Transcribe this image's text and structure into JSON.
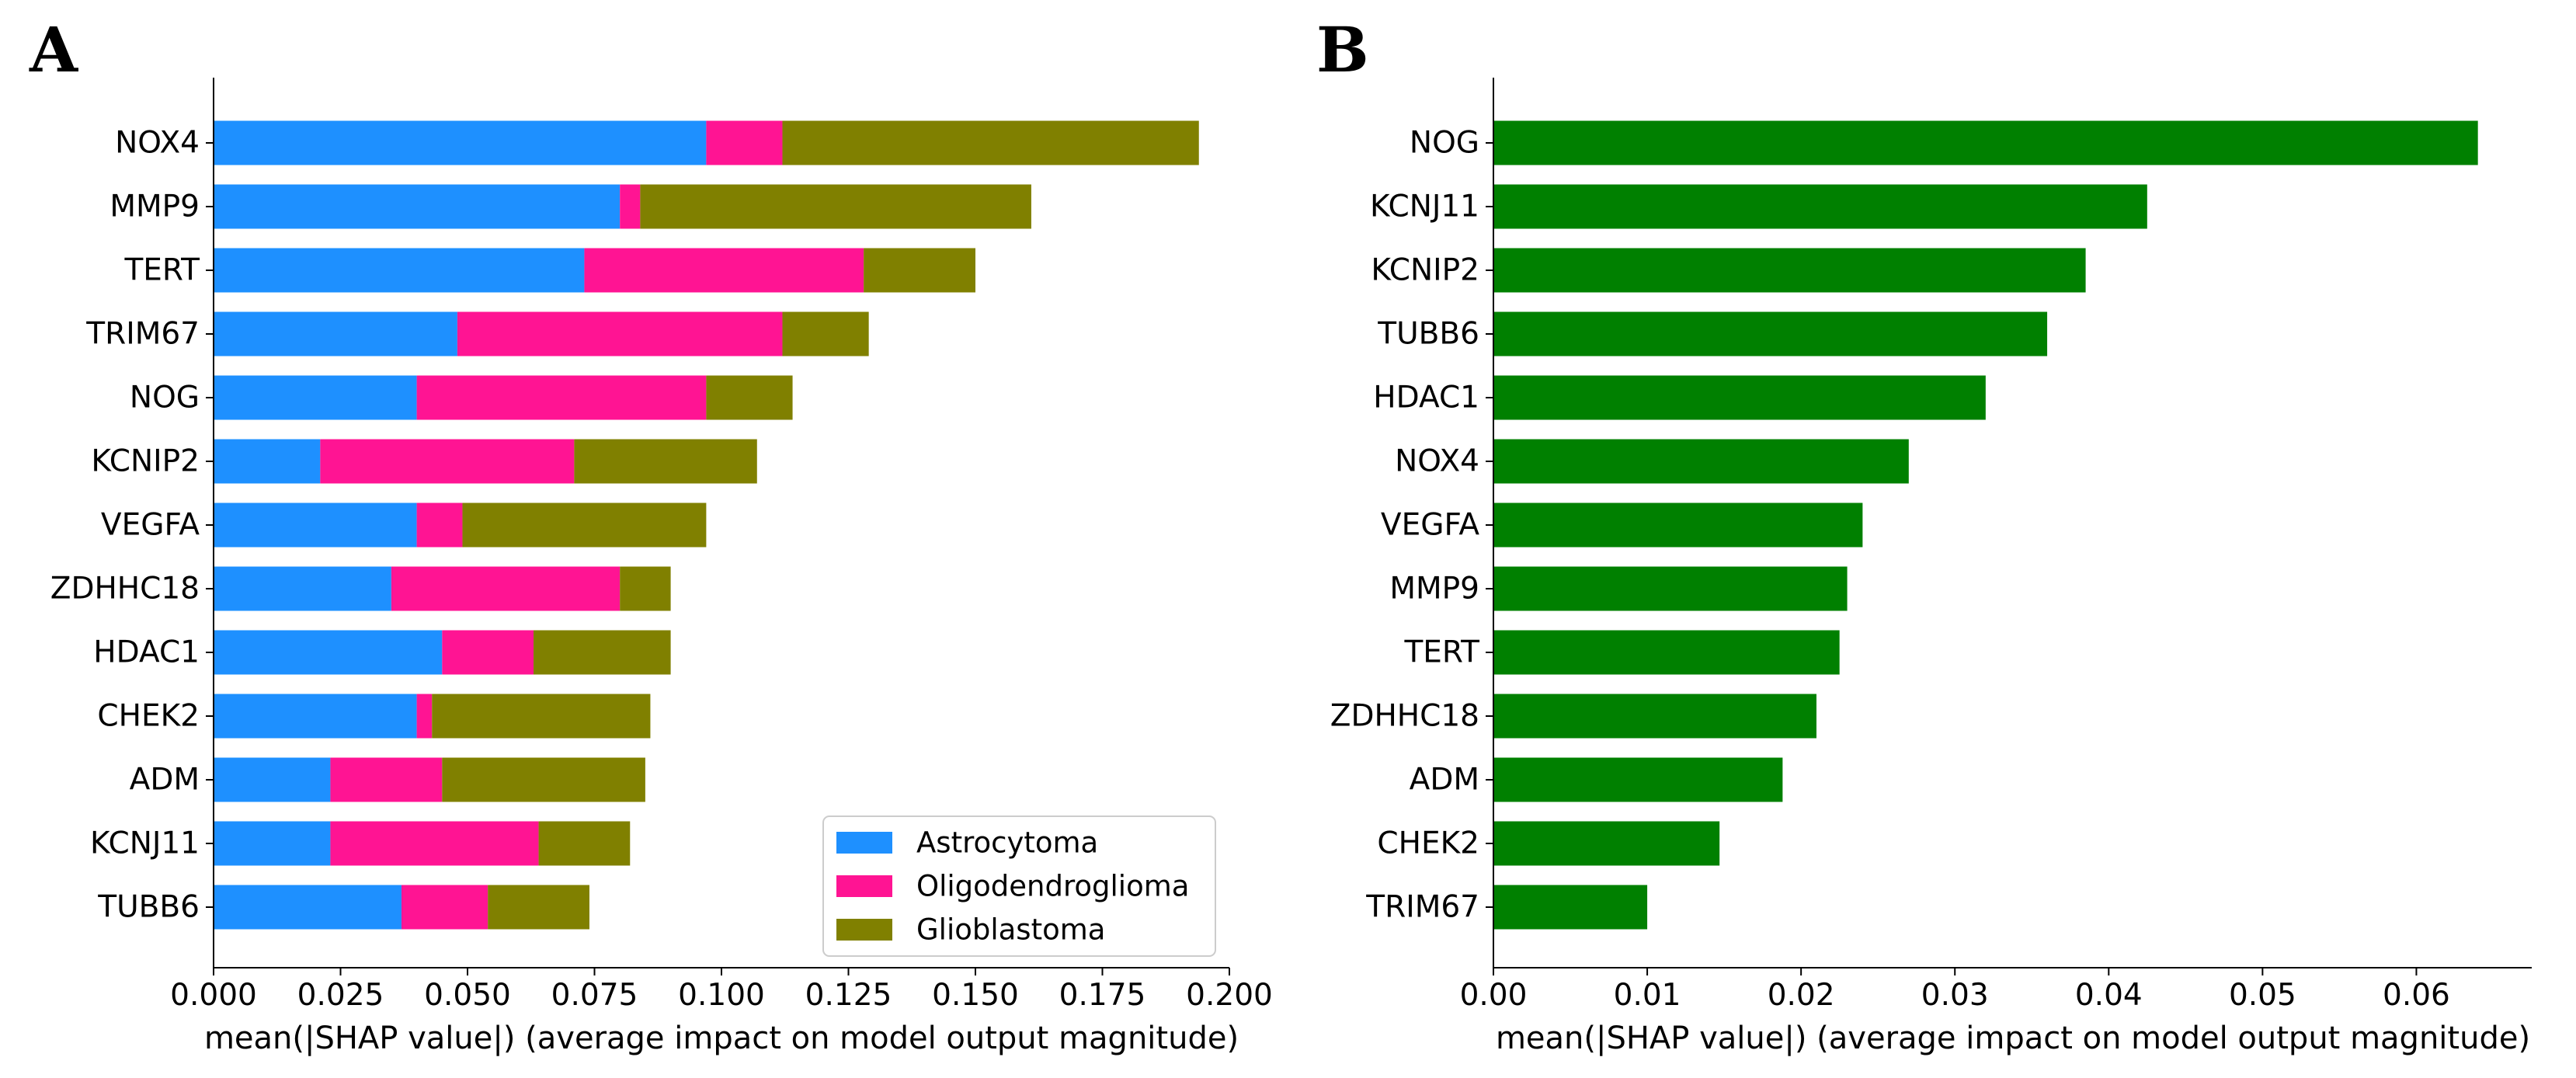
{
  "chart_data": [
    {
      "panel": "A",
      "type": "bar",
      "orientation": "horizontal",
      "stacked": true,
      "title": "",
      "xlabel": "mean(|SHAP value|) (average impact on model output magnitude)",
      "ylabel": "",
      "xlim": [
        0,
        0.2
      ],
      "xticks": [
        "0.000",
        "0.025",
        "0.050",
        "0.075",
        "0.100",
        "0.125",
        "0.150",
        "0.175",
        "0.200"
      ],
      "grid": false,
      "legend_position": "lower-right",
      "categories": [
        "NOX4",
        "MMP9",
        "TERT",
        "TRIM67",
        "NOG",
        "KCNIP2",
        "VEGFA",
        "ZDHHC18",
        "HDAC1",
        "CHEK2",
        "ADM",
        "KCNJ11",
        "TUBB6"
      ],
      "series": [
        {
          "name": "Astrocytoma",
          "color": "#1e90ff",
          "values": [
            0.097,
            0.08,
            0.073,
            0.048,
            0.04,
            0.021,
            0.04,
            0.035,
            0.045,
            0.04,
            0.023,
            0.023,
            0.037
          ]
        },
        {
          "name": "Oligodendroglioma",
          "color": "#ff1493",
          "values": [
            0.015,
            0.004,
            0.055,
            0.064,
            0.057,
            0.05,
            0.009,
            0.045,
            0.018,
            0.003,
            0.022,
            0.041,
            0.017
          ]
        },
        {
          "name": "Glioblastoma",
          "color": "#808000",
          "values": [
            0.082,
            0.077,
            0.022,
            0.017,
            0.017,
            0.036,
            0.048,
            0.01,
            0.027,
            0.043,
            0.04,
            0.018,
            0.02
          ]
        }
      ]
    },
    {
      "panel": "B",
      "type": "bar",
      "orientation": "horizontal",
      "stacked": false,
      "title": "",
      "xlabel": "mean(|SHAP value|) (average impact on model output magnitude)",
      "ylabel": "",
      "xlim": [
        0,
        0.0675
      ],
      "xticks": [
        "0.00",
        "0.01",
        "0.02",
        "0.03",
        "0.04",
        "0.05",
        "0.06"
      ],
      "grid": false,
      "categories": [
        "NOG",
        "KCNJ11",
        "KCNIP2",
        "TUBB6",
        "HDAC1",
        "NOX4",
        "VEGFA",
        "MMP9",
        "TERT",
        "ZDHHC18",
        "ADM",
        "CHEK2",
        "TRIM67"
      ],
      "series": [
        {
          "name": "",
          "color": "#008000",
          "values": [
            0.064,
            0.0425,
            0.0385,
            0.036,
            0.032,
            0.027,
            0.024,
            0.023,
            0.0225,
            0.021,
            0.0188,
            0.0147,
            0.01
          ]
        }
      ]
    }
  ]
}
